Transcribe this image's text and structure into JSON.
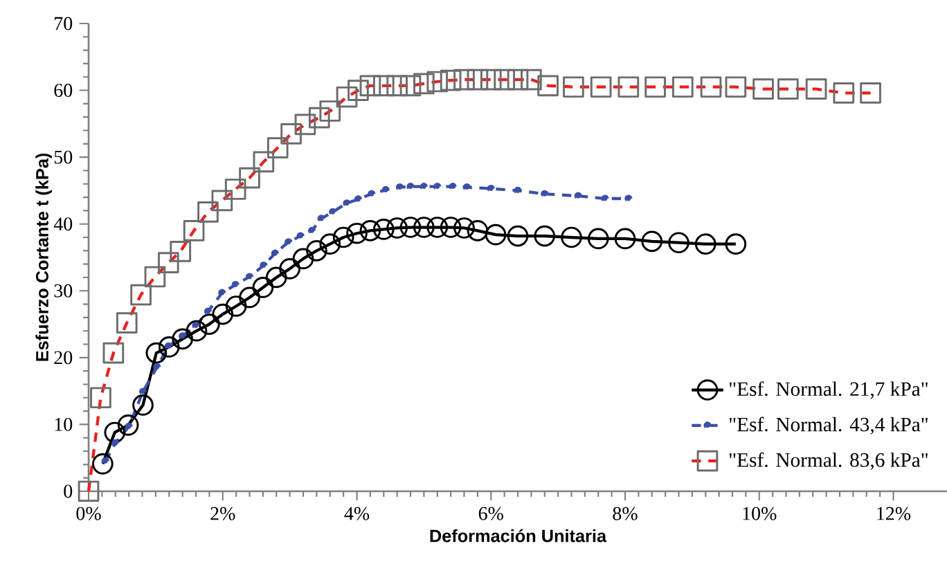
{
  "chart_data": {
    "type": "line",
    "xlabel": "Deformación Unitaria",
    "ylabel": "Esfuerzo Cortante t (kPa)",
    "xlim": [
      0,
      12.8
    ],
    "ylim": [
      0,
      70
    ],
    "xticks": [
      {
        "value": 0,
        "label": "0%"
      },
      {
        "value": 2,
        "label": "2%"
      },
      {
        "value": 4,
        "label": "4%"
      },
      {
        "value": 6,
        "label": "6%"
      },
      {
        "value": 8,
        "label": "8%"
      },
      {
        "value": 10,
        "label": "10%"
      },
      {
        "value": 12,
        "label": "12%"
      }
    ],
    "yticks": [
      0,
      10,
      20,
      30,
      40,
      50,
      60,
      70
    ],
    "grid": false,
    "legend": "bottom right",
    "series": [
      {
        "name": "\"Esf. Normal. 21,7 kPa\"",
        "color": "#000000",
        "marker": "circle",
        "line_style": "solid",
        "x": [
          0.21,
          0.39,
          0.59,
          0.81,
          1.01,
          1.2,
          1.4,
          1.61,
          1.8,
          2.0,
          2.2,
          2.4,
          2.6,
          2.8,
          3.0,
          3.2,
          3.4,
          3.6,
          3.8,
          4.0,
          4.2,
          4.4,
          4.6,
          4.8,
          5.0,
          5.2,
          5.4,
          5.6,
          5.8,
          6.07,
          6.4,
          6.8,
          7.2,
          7.6,
          8.0,
          8.4,
          8.8,
          9.2,
          9.65
        ],
        "values": [
          4.1,
          8.8,
          9.9,
          12.9,
          20.7,
          21.6,
          22.8,
          24.0,
          25.0,
          26.5,
          27.7,
          29.0,
          30.5,
          32.0,
          33.3,
          34.8,
          36.0,
          37.0,
          38.0,
          38.6,
          39.0,
          39.2,
          39.4,
          39.5,
          39.5,
          39.5,
          39.5,
          39.4,
          39.0,
          38.4,
          38.2,
          38.2,
          38.0,
          37.8,
          37.8,
          37.4,
          37.2,
          37.0,
          37.0
        ]
      },
      {
        "name": "\"Esf. Normal. 43,4 kPa\"",
        "color": "#3b4fa8",
        "marker": "cross",
        "line_style": "dashed",
        "x": [
          0.25,
          0.4,
          0.6,
          0.81,
          1.02,
          1.19,
          1.4,
          1.6,
          1.78,
          1.99,
          2.19,
          2.4,
          2.61,
          2.78,
          2.98,
          3.16,
          3.33,
          3.47,
          3.64,
          3.85,
          4.02,
          4.22,
          4.43,
          4.64,
          4.8,
          5.0,
          5.2,
          5.43,
          5.64,
          6.0,
          6.4,
          6.8,
          7.3,
          7.7,
          8.05
        ],
        "values": [
          4.5,
          7.2,
          9.7,
          14.9,
          18.6,
          21.7,
          23.2,
          24.8,
          26.9,
          29.7,
          30.9,
          32.1,
          33.8,
          35.6,
          37.3,
          38.2,
          39.0,
          40.8,
          41.8,
          43.1,
          43.7,
          44.5,
          45.1,
          45.5,
          45.6,
          45.6,
          45.6,
          45.6,
          45.5,
          45.3,
          45.0,
          44.5,
          44.2,
          43.8,
          43.8
        ]
      },
      {
        "name": "\"Esf. Normal. 83,6 kPa\"",
        "color": "#e8211d",
        "marker": "square",
        "line_style": "dashed",
        "x": [
          0,
          0.18,
          0.37,
          0.57,
          0.78,
          0.99,
          1.19,
          1.37,
          1.57,
          1.78,
          1.99,
          2.19,
          2.4,
          2.61,
          2.82,
          3.02,
          3.23,
          3.44,
          3.6,
          3.85,
          4.02,
          4.2,
          4.4,
          4.6,
          4.8,
          5.0,
          5.2,
          5.4,
          5.6,
          5.8,
          6.0,
          6.2,
          6.4,
          6.6,
          6.85,
          7.23,
          7.64,
          8.05,
          8.45,
          8.86,
          9.28,
          9.65,
          10.06,
          10.43,
          10.85,
          11.26,
          11.66
        ],
        "values": [
          0,
          14.0,
          20.7,
          25.2,
          29.4,
          32.1,
          34.2,
          35.9,
          39.0,
          41.8,
          43.5,
          45.2,
          46.9,
          49.3,
          51.4,
          53.5,
          54.9,
          55.9,
          56.9,
          59.0,
          60.0,
          60.7,
          60.7,
          60.7,
          60.7,
          61.0,
          61.3,
          61.5,
          61.6,
          61.6,
          61.6,
          61.6,
          61.6,
          61.6,
          60.7,
          60.5,
          60.5,
          60.5,
          60.5,
          60.5,
          60.5,
          60.5,
          60.2,
          60.2,
          60.2,
          59.6,
          59.6
        ]
      }
    ]
  }
}
